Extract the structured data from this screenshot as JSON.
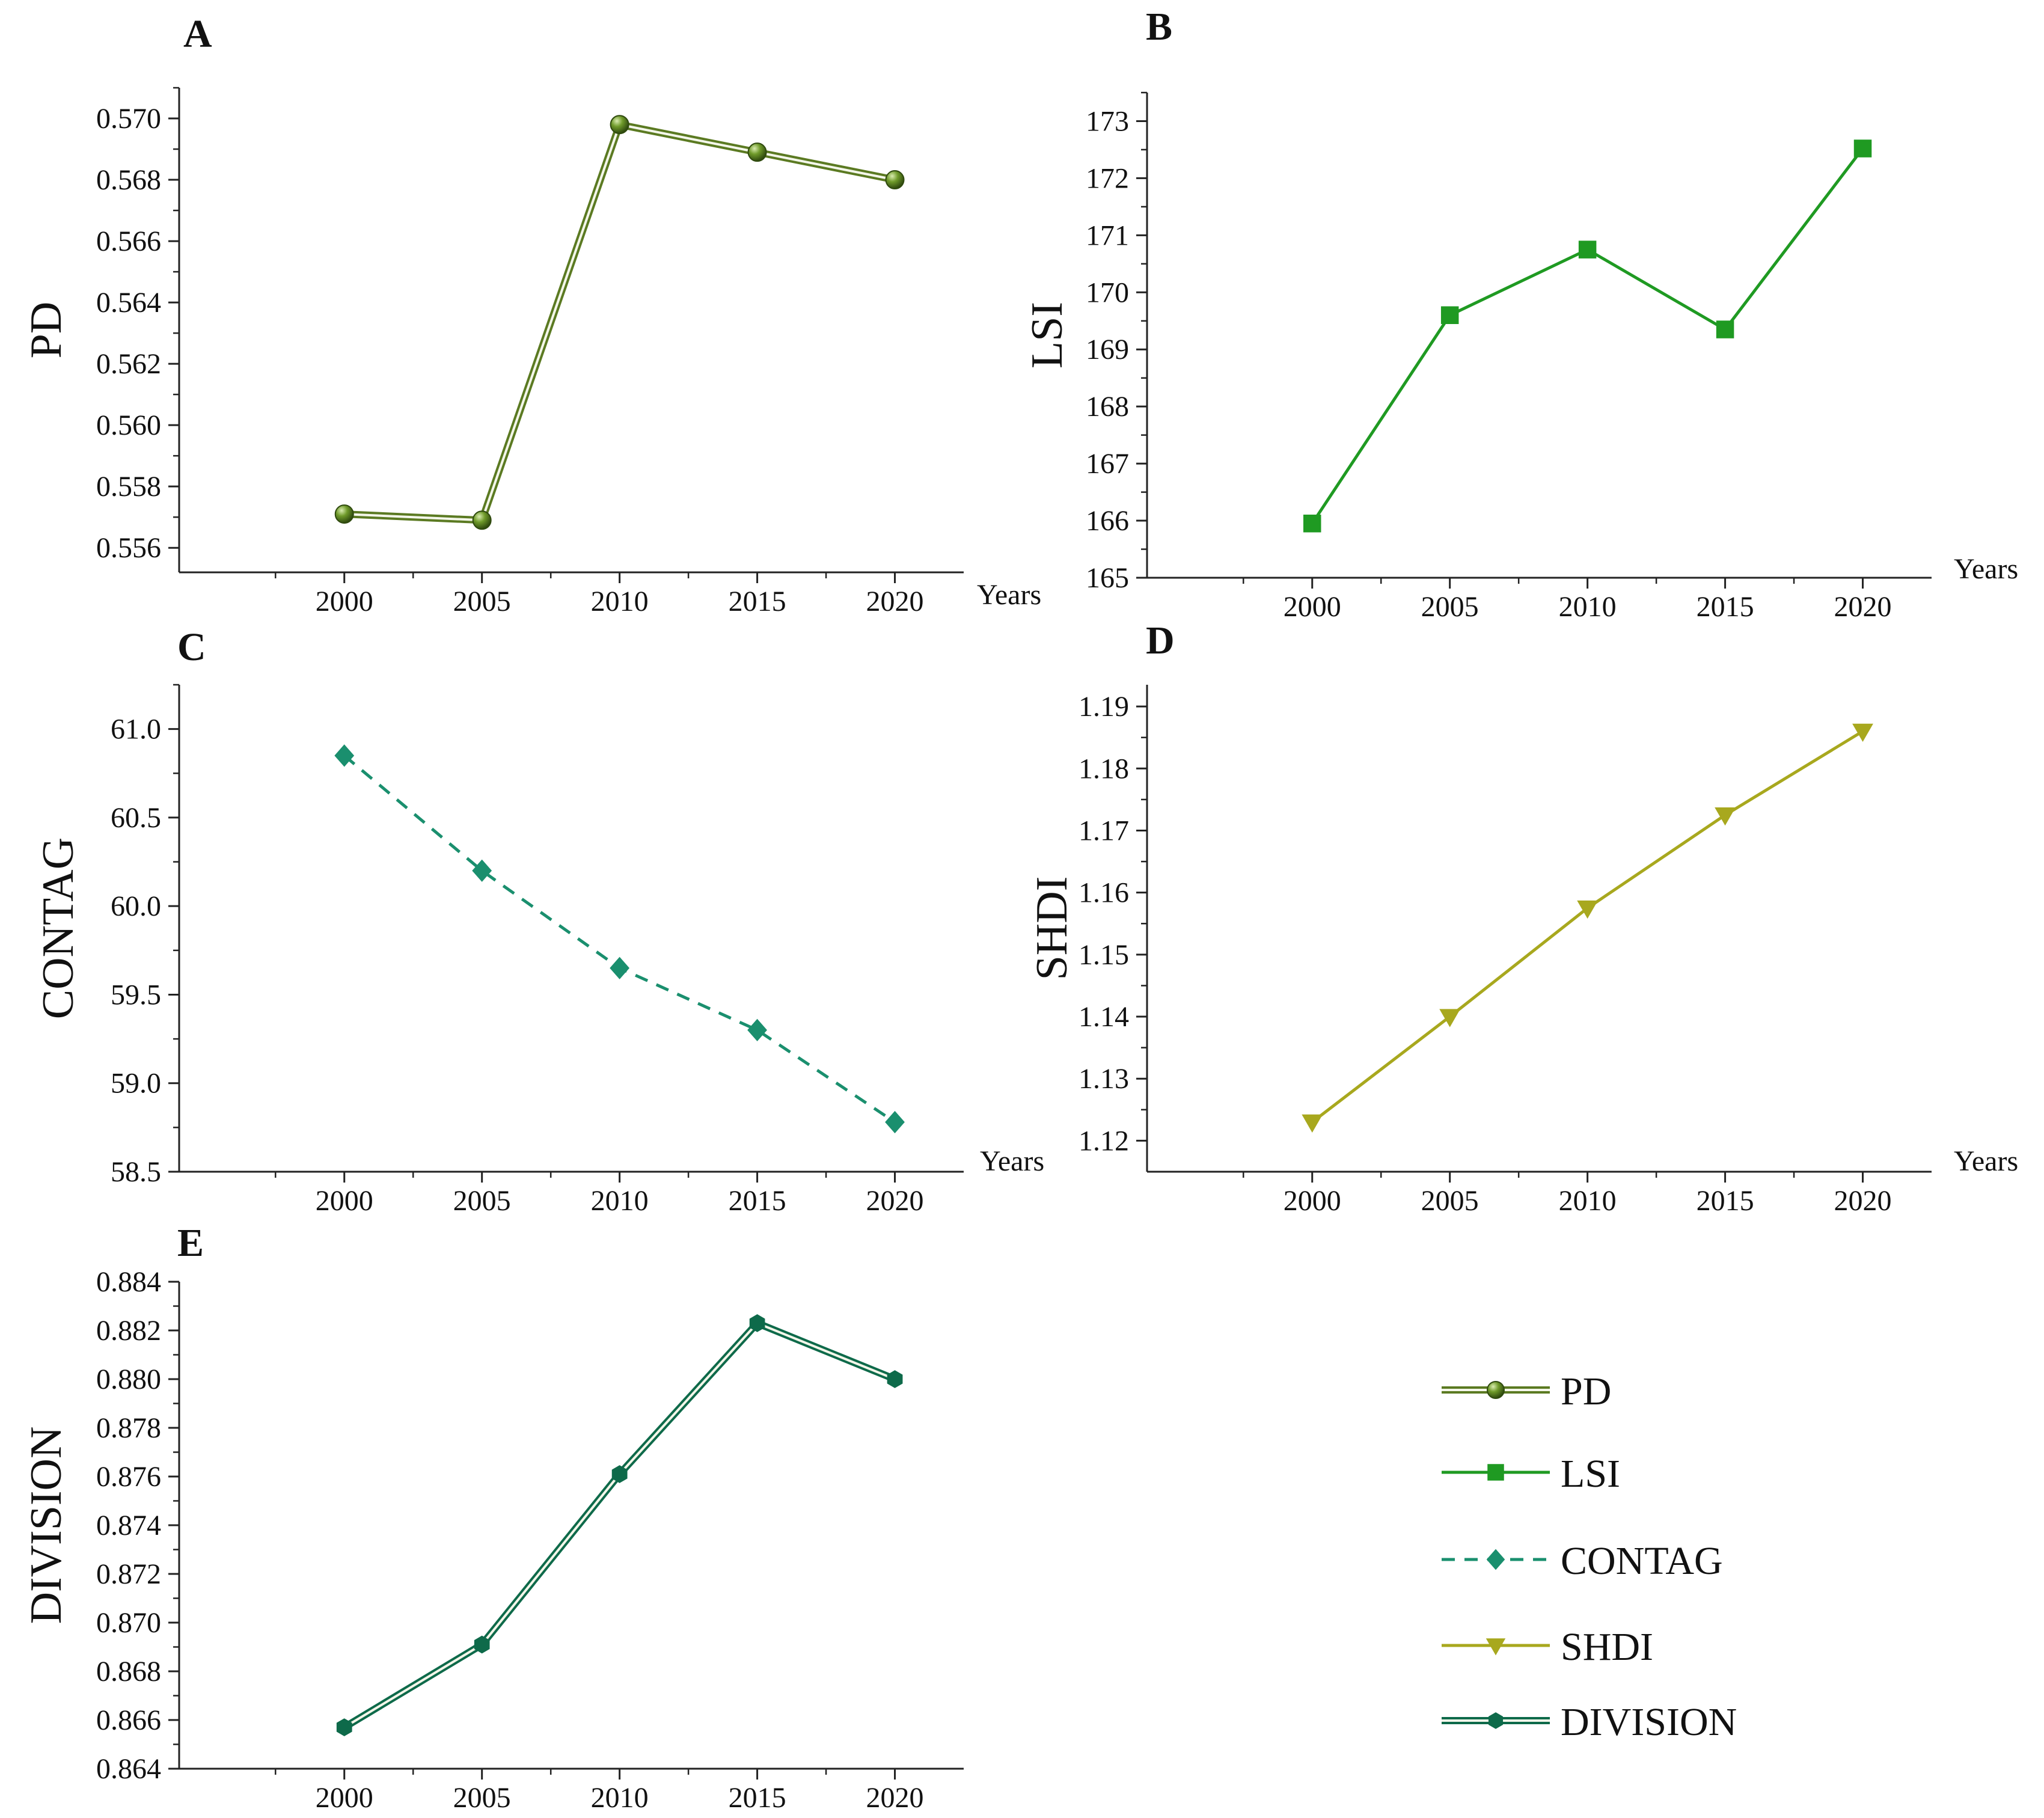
{
  "figure": {
    "title": ""
  },
  "chart_data": [
    {
      "id": "A",
      "panel_label": "A",
      "type": "line",
      "title": "",
      "xlabel": "Years",
      "ylabel": "PD",
      "x": [
        2000,
        2005,
        2010,
        2015,
        2020
      ],
      "xlim": [
        1994,
        2022.5
      ],
      "xticks": [
        2000,
        2005,
        2010,
        2015,
        2020
      ],
      "xtick_labels": [
        "2000",
        "2005",
        "2010",
        "2015",
        "2020"
      ],
      "ylim": [
        0.5552,
        0.571
      ],
      "yticks": [
        0.556,
        0.558,
        0.56,
        0.562,
        0.564,
        0.566,
        0.568,
        0.57
      ],
      "ytick_labels": [
        "0.556",
        "0.558",
        "0.560",
        "0.562",
        "0.564",
        "0.566",
        "0.568",
        "0.570"
      ],
      "grid": false,
      "series": [
        {
          "name": "PD",
          "values": [
            0.5571,
            0.5569,
            0.5698,
            0.5689,
            0.568
          ],
          "color": "#5b7a22",
          "marker": "sphere",
          "line_style": "double"
        }
      ]
    },
    {
      "id": "B",
      "panel_label": "B",
      "type": "line",
      "title": "",
      "xlabel": "Years",
      "ylabel": "LSI",
      "x": [
        2000,
        2005,
        2010,
        2015,
        2020
      ],
      "xlim": [
        1994,
        2022.5
      ],
      "xticks": [
        2000,
        2005,
        2010,
        2015,
        2020
      ],
      "xtick_labels": [
        "2000",
        "2005",
        "2010",
        "2015",
        "2020"
      ],
      "ylim": [
        165,
        173.5
      ],
      "yticks": [
        165,
        166,
        167,
        168,
        169,
        170,
        171,
        172,
        173
      ],
      "ytick_labels": [
        "165",
        "166",
        "167",
        "168",
        "169",
        "170",
        "171",
        "172",
        "173"
      ],
      "grid": false,
      "series": [
        {
          "name": "LSI",
          "values": [
            165.95,
            169.6,
            170.75,
            169.35,
            172.52
          ],
          "color": "#1f9a22",
          "marker": "square",
          "line_style": "solid"
        }
      ]
    },
    {
      "id": "C",
      "panel_label": "C",
      "type": "line",
      "title": "",
      "xlabel": "Years",
      "ylabel": "CONTAG",
      "x": [
        2000,
        2005,
        2010,
        2015,
        2020
      ],
      "xlim": [
        1994,
        2022.5
      ],
      "xticks": [
        2000,
        2005,
        2010,
        2015,
        2020
      ],
      "xtick_labels": [
        "2000",
        "2005",
        "2010",
        "2015",
        "2020"
      ],
      "ylim": [
        58.5,
        61.25
      ],
      "yticks": [
        58.5,
        59,
        59.5,
        60,
        60.5,
        61
      ],
      "ytick_labels": [
        "58.5",
        "59.0",
        "59.5",
        "60.0",
        "60.5",
        "61.0"
      ],
      "grid": false,
      "series": [
        {
          "name": "CONTAG",
          "values": [
            60.85,
            60.2,
            59.65,
            59.3,
            58.78
          ],
          "color": "#1a8f6e",
          "marker": "diamond",
          "line_style": "dashed"
        }
      ]
    },
    {
      "id": "D",
      "panel_label": "D",
      "type": "line",
      "title": "",
      "xlabel": "Years",
      "ylabel": "SHDI",
      "x": [
        2000,
        2005,
        2010,
        2015,
        2020
      ],
      "xlim": [
        1994,
        2022.5
      ],
      "xticks": [
        2000,
        2005,
        2010,
        2015,
        2020
      ],
      "xtick_labels": [
        "2000",
        "2005",
        "2010",
        "2015",
        "2020"
      ],
      "ylim": [
        1.115,
        1.1935
      ],
      "yticks": [
        1.12,
        1.13,
        1.14,
        1.15,
        1.16,
        1.17,
        1.18,
        1.19
      ],
      "ytick_labels": [
        "1.12",
        "1.13",
        "1.14",
        "1.15",
        "1.16",
        "1.17",
        "1.18",
        "1.19"
      ],
      "grid": false,
      "series": [
        {
          "name": "SHDI",
          "values": [
            1.123,
            1.14,
            1.1575,
            1.1725,
            1.186
          ],
          "color": "#a8a81e",
          "marker": "triangle-down",
          "line_style": "solid"
        }
      ]
    },
    {
      "id": "E",
      "panel_label": "E",
      "type": "line",
      "title": "",
      "xlabel": "",
      "ylabel": "DIVISION",
      "x": [
        2000,
        2005,
        2010,
        2015,
        2020
      ],
      "xlim": [
        1994,
        2022.5
      ],
      "xticks": [
        2000,
        2005,
        2010,
        2015,
        2020
      ],
      "xtick_labels": [
        "2000",
        "2005",
        "2010",
        "2015",
        "2020"
      ],
      "ylim": [
        0.864,
        0.884
      ],
      "yticks": [
        0.864,
        0.866,
        0.868,
        0.87,
        0.872,
        0.874,
        0.876,
        0.878,
        0.88,
        0.882,
        0.884
      ],
      "ytick_labels": [
        "0.864",
        "0.866",
        "0.868",
        "0.870",
        "0.872",
        "0.874",
        "0.876",
        "0.878",
        "0.880",
        "0.882",
        "0.884"
      ],
      "grid": false,
      "series": [
        {
          "name": "DIVISION",
          "values": [
            0.8657,
            0.8691,
            0.8761,
            0.8823,
            0.88
          ],
          "color": "#0e6a4a",
          "marker": "hexagon",
          "line_style": "double"
        }
      ]
    }
  ],
  "legend": {
    "placement": "bottom-right",
    "items": [
      {
        "label": "PD",
        "color": "#5b7a22",
        "marker": "sphere",
        "line_style": "double"
      },
      {
        "label": "LSI",
        "color": "#1f9a22",
        "marker": "square",
        "line_style": "solid"
      },
      {
        "label": "CONTAG",
        "color": "#1a8f6e",
        "marker": "diamond",
        "line_style": "dashed"
      },
      {
        "label": "SHDI",
        "color": "#a8a81e",
        "marker": "triangle-down",
        "line_style": "solid"
      },
      {
        "label": "DIVISION",
        "color": "#0e6a4a",
        "marker": "hexagon",
        "line_style": "double"
      }
    ]
  }
}
